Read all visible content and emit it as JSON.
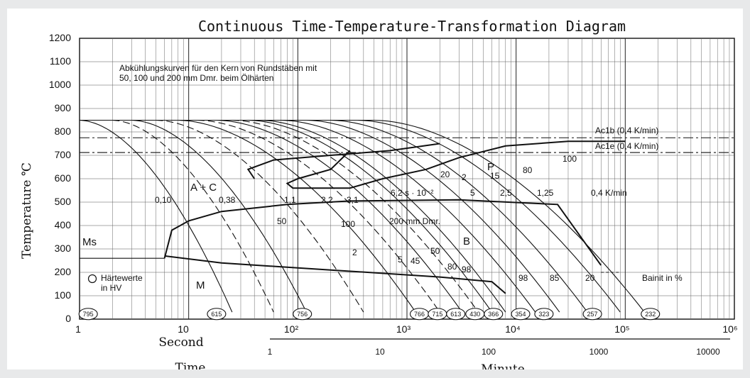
{
  "chart_data": {
    "type": "line",
    "title": "Continuous Time-Temperature-Transformation Diagram",
    "ylabel": "Temperature ℃",
    "xlabel_second": "Second",
    "xlabel_time": "Time",
    "xlabel_minute": "Minute",
    "ylim": [
      0,
      1200
    ],
    "x_scale": "log",
    "y_ticks": [
      "0",
      "100",
      "200",
      "300",
      "400",
      "500",
      "600",
      "700",
      "800",
      "900",
      "1000",
      "1100",
      "1200"
    ],
    "x_ticks_second": [
      "1",
      "10",
      "10²",
      "10³",
      "10⁴",
      "10⁵",
      "10⁶"
    ],
    "x_ticks_minute": [
      "1",
      "10",
      "100",
      "1000",
      "10000"
    ],
    "annotation_header_line1": "Abkühlungskurven für den Kern von Rundstäben mit",
    "annotation_header_line2": "50, 100 und 200 mm Dmr. beim Ölhärten",
    "ac1b_label": "Ac1b (0,4 K/min)",
    "ac1e_label": "Ac1e (0,4 K/min)",
    "region_labels": {
      "ac": "A + C",
      "p": "P",
      "b": "B",
      "m": "M",
      "ms": "Ms"
    },
    "cooling_rate_labels": [
      "0,10",
      "0,38",
      "1,1",
      "2,2",
      "3,1",
      "6,2 s · 10⁻²",
      "1,25",
      "0,4 K/min"
    ],
    "diameter_labels": [
      "50",
      "100",
      "200 mm Dmr."
    ],
    "pearlite_percent_labels": [
      "2",
      "15",
      "80",
      "100",
      "20",
      "5",
      "2,5"
    ],
    "bainite_percent_labels": [
      "2",
      "5",
      "45",
      "50",
      "80",
      "98",
      "98",
      "85",
      "20"
    ],
    "bainite_label": "Bainit in %",
    "legend_line1": "Härtewerte",
    "legend_line2": "in HV",
    "hardness_values": [
      "795",
      "615",
      "756",
      "766",
      "715",
      "613",
      "430",
      "366",
      "354",
      "323",
      "257",
      "232"
    ],
    "grid": true
  }
}
